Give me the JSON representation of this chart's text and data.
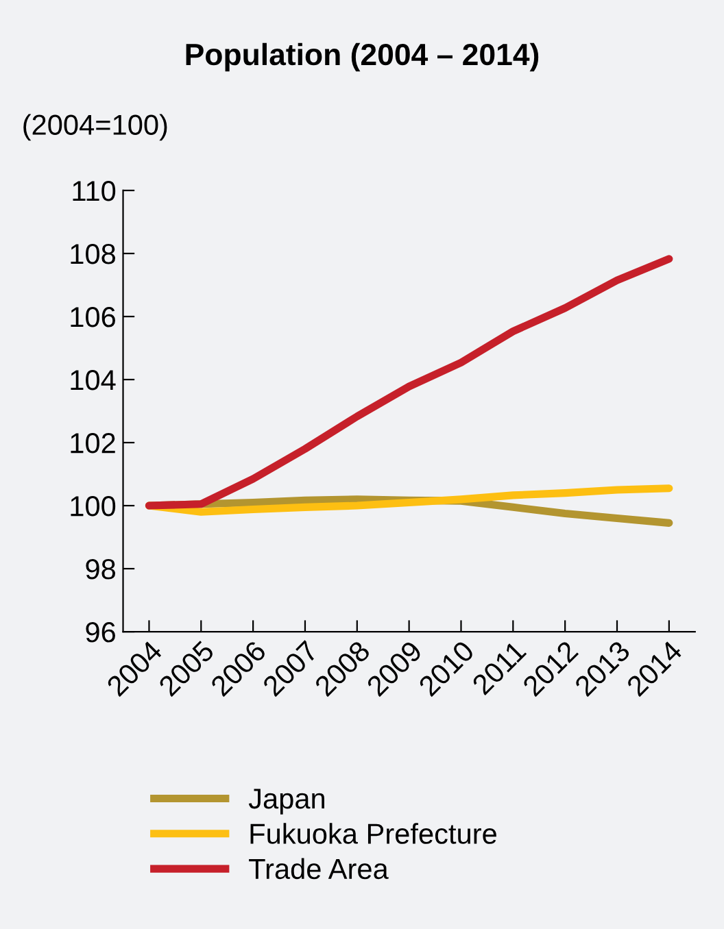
{
  "chart_data": {
    "type": "line",
    "title": "Population (2004 – 2014)",
    "ylabel": "(2004=100)",
    "categories": [
      "2004",
      "2005",
      "2006",
      "2007",
      "2008",
      "2009",
      "2010",
      "2011",
      "2012",
      "2013",
      "2014"
    ],
    "series": [
      {
        "name": "Japan",
        "color": "#b39530",
        "values": [
          100,
          100.05,
          100.1,
          100.17,
          100.2,
          100.17,
          100.15,
          99.95,
          99.75,
          99.6,
          99.45
        ]
      },
      {
        "name": "Fukuoka Prefecture",
        "color": "#fdbf12",
        "values": [
          100,
          99.8,
          99.88,
          99.95,
          100.0,
          100.1,
          100.2,
          100.33,
          100.4,
          100.5,
          100.55
        ]
      },
      {
        "name": "Trade Area",
        "color": "#c6202a",
        "values": [
          100,
          100.05,
          100.85,
          101.8,
          102.83,
          103.78,
          104.54,
          105.53,
          106.27,
          107.15,
          107.83
        ]
      }
    ],
    "ylim": [
      96,
      110
    ],
    "yticks": [
      96,
      98,
      100,
      102,
      104,
      106,
      108,
      110
    ],
    "grid": false,
    "legend": "bottom",
    "marker": "none",
    "line_style": "solid"
  }
}
